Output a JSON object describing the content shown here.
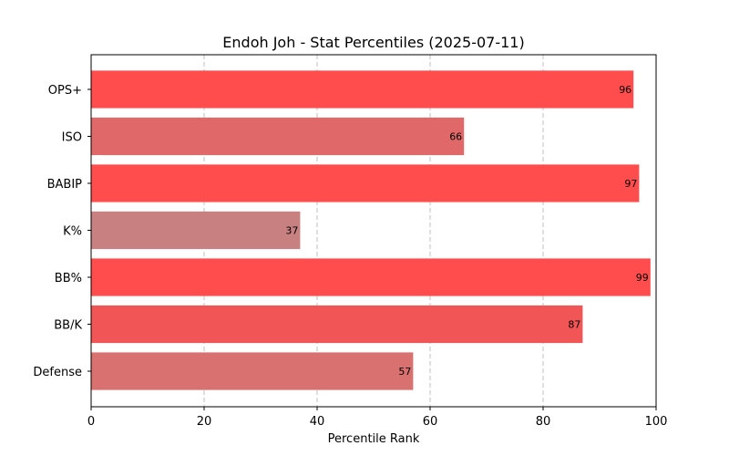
{
  "chart_data": {
    "type": "bar",
    "orientation": "horizontal",
    "title": "Endoh Joh - Stat Percentiles (2025-07-11)",
    "xlabel": "Percentile Rank",
    "ylabel": "",
    "xlim": [
      0,
      100
    ],
    "xticks": [
      0,
      20,
      40,
      60,
      80,
      100
    ],
    "grid": "x-dashed",
    "categories": [
      "OPS+",
      "ISO",
      "BABIP",
      "K%",
      "BB%",
      "BB/K",
      "Defense"
    ],
    "values": [
      96,
      66,
      97,
      37,
      99,
      87,
      57
    ],
    "colors": [
      "#ff4d4d",
      "#e06868",
      "#ff4d4d",
      "#c88080",
      "#ff4d4d",
      "#f25555",
      "#d97171"
    ]
  }
}
